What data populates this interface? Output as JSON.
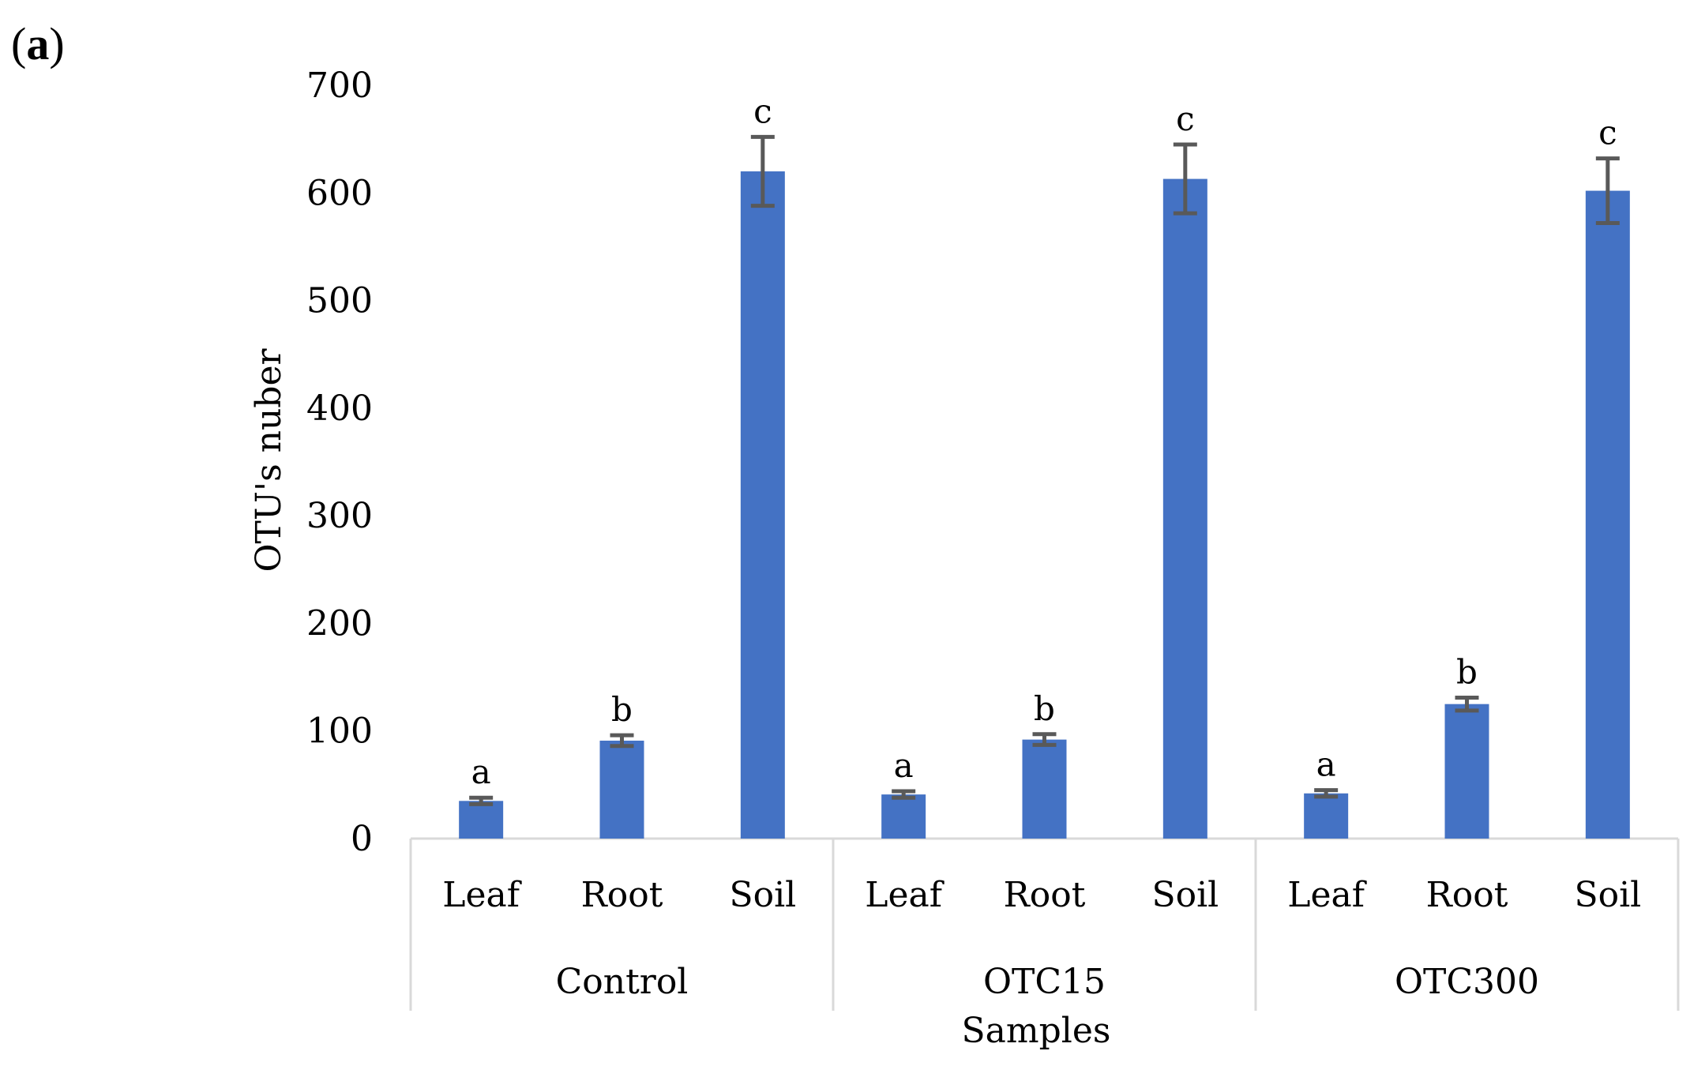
{
  "panel_label": {
    "open": "(",
    "letter": "a",
    "close": ")"
  },
  "chart_data": {
    "type": "bar",
    "title": "",
    "xlabel": "Samples",
    "ylabel": "OTU's nuber",
    "ylim": [
      0,
      700
    ],
    "yticks": [
      0,
      100,
      200,
      300,
      400,
      500,
      600,
      700
    ],
    "grid": false,
    "legend": "none",
    "bar_color": "#4472C4",
    "error_bar_color": "#595959",
    "groups": [
      {
        "name": "Control",
        "bars": [
          {
            "category": "Leaf",
            "value": 35,
            "error": 3,
            "letter": "a"
          },
          {
            "category": "Root",
            "value": 91,
            "error": 5,
            "letter": "b"
          },
          {
            "category": "Soil",
            "value": 620,
            "error": 32,
            "letter": "c"
          }
        ]
      },
      {
        "name": "OTC15",
        "bars": [
          {
            "category": "Leaf",
            "value": 41,
            "error": 3,
            "letter": "a"
          },
          {
            "category": "Root",
            "value": 92,
            "error": 5,
            "letter": "b"
          },
          {
            "category": "Soil",
            "value": 613,
            "error": 32,
            "letter": "c"
          }
        ]
      },
      {
        "name": "OTC300",
        "bars": [
          {
            "category": "Leaf",
            "value": 42,
            "error": 3,
            "letter": "a"
          },
          {
            "category": "Root",
            "value": 125,
            "error": 6,
            "letter": "b"
          },
          {
            "category": "Soil",
            "value": 602,
            "error": 30,
            "letter": "c"
          }
        ]
      }
    ]
  }
}
